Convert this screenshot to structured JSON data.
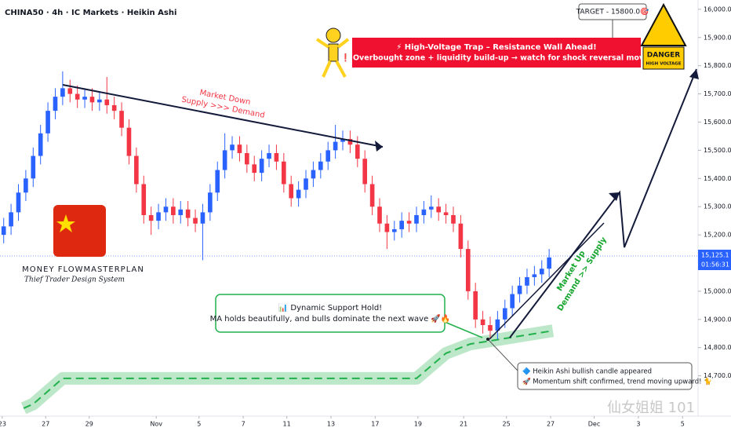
{
  "chart_data": {
    "type": "candlestick",
    "title": "CHINA50 · 4h · IC Markets · Heikin Ashi",
    "up_color": "#2962ff",
    "down_color": "#f23645",
    "x": [
      0,
      1,
      2,
      3,
      4,
      5,
      6,
      7,
      8,
      9,
      10,
      11,
      12,
      13,
      14,
      15,
      16,
      17,
      18,
      19,
      20,
      21,
      22,
      23,
      24,
      25,
      26,
      27,
      28,
      29,
      30,
      31,
      32,
      33,
      34,
      35,
      36,
      37,
      38,
      39,
      40,
      41,
      42,
      43,
      44,
      45,
      46,
      47,
      48,
      49,
      50,
      51,
      52,
      53,
      54,
      55,
      56,
      57,
      58,
      59,
      60,
      61,
      62,
      63,
      64,
      65,
      66,
      67,
      68,
      69,
      70,
      71,
      72,
      73,
      74
    ],
    "open": [
      15200,
      15230,
      15280,
      15350,
      15400,
      15480,
      15560,
      15640,
      15690,
      15720,
      15700,
      15680,
      15690,
      15670,
      15680,
      15660,
      15640,
      15580,
      15480,
      15380,
      15270,
      15250,
      15280,
      15300,
      15270,
      15290,
      15260,
      15240,
      15280,
      15350,
      15430,
      15500,
      15520,
      15490,
      15450,
      15420,
      15470,
      15490,
      15460,
      15380,
      15330,
      15360,
      15400,
      15430,
      15460,
      15500,
      15530,
      15540,
      15520,
      15470,
      15380,
      15300,
      15240,
      15210,
      15220,
      15250,
      15240,
      15270,
      15290,
      15300,
      15280,
      15270,
      15240,
      15150,
      15000,
      14900,
      14880,
      14860,
      14900,
      14940,
      14990,
      15020,
      15050,
      15060,
      15080
    ],
    "high": [
      15260,
      15310,
      15380,
      15430,
      15510,
      15590,
      15670,
      15720,
      15780,
      15750,
      15730,
      15720,
      15720,
      15710,
      15760,
      15690,
      15670,
      15610,
      15510,
      15410,
      15300,
      15310,
      15330,
      15330,
      15320,
      15320,
      15290,
      15310,
      15380,
      15460,
      15560,
      15550,
      15550,
      15520,
      15480,
      15500,
      15520,
      15520,
      15490,
      15410,
      15390,
      15430,
      15460,
      15490,
      15530,
      15590,
      15570,
      15570,
      15550,
      15500,
      15410,
      15330,
      15270,
      15250,
      15280,
      15280,
      15300,
      15320,
      15340,
      15330,
      15310,
      15300,
      15270,
      15180,
      15030,
      14930,
      14910,
      14930,
      14970,
      15020,
      15050,
      15080,
      15090,
      15110,
      15150
    ],
    "low": [
      15170,
      15200,
      15250,
      15320,
      15370,
      15450,
      15530,
      15610,
      15660,
      15670,
      15650,
      15650,
      15640,
      15640,
      15630,
      15610,
      15550,
      15450,
      15350,
      15240,
      15200,
      15220,
      15250,
      15240,
      15240,
      15230,
      15210,
      15110,
      15250,
      15320,
      15400,
      15470,
      15460,
      15420,
      15390,
      15390,
      15440,
      15430,
      15350,
      15300,
      15300,
      15330,
      15370,
      15400,
      15430,
      15470,
      15500,
      15490,
      15440,
      15350,
      15270,
      15210,
      15150,
      15180,
      15190,
      15210,
      15210,
      15240,
      15260,
      15250,
      15240,
      15210,
      15120,
      14970,
      14870,
      14850,
      14830,
      14830,
      14870,
      14910,
      14960,
      14990,
      15020,
      15030,
      15050
    ],
    "close": [
      15230,
      15280,
      15350,
      15400,
      15480,
      15560,
      15640,
      15690,
      15720,
      15700,
      15680,
      15690,
      15670,
      15680,
      15660,
      15640,
      15580,
      15480,
      15380,
      15270,
      15250,
      15280,
      15300,
      15270,
      15290,
      15260,
      15240,
      15280,
      15350,
      15430,
      15500,
      15520,
      15490,
      15450,
      15420,
      15470,
      15490,
      15460,
      15380,
      15330,
      15360,
      15400,
      15430,
      15460,
      15500,
      15530,
      15540,
      15520,
      15470,
      15380,
      15300,
      15240,
      15210,
      15220,
      15250,
      15240,
      15270,
      15290,
      15300,
      15280,
      15270,
      15240,
      15150,
      15000,
      14900,
      14880,
      14860,
      14900,
      14940,
      14990,
      15020,
      15050,
      15060,
      15080,
      15120
    ],
    "ma": {
      "color": "#22b14c",
      "x": [
        2.7,
        4,
        8,
        56,
        60,
        63.3,
        65.5,
        74.5
      ],
      "values": [
        14585,
        14600,
        14691,
        14691,
        14780,
        14813,
        14822,
        14860
      ]
    },
    "last_price": {
      "value": 15125.1,
      "label": "15,125.1"
    },
    "countdown": "01:56:31",
    "xlim": [
      -0.5,
      94.2
    ],
    "xticks": [
      {
        "value": -0.2,
        "label": "23"
      },
      {
        "value": 5.7,
        "label": "27"
      },
      {
        "value": 11.6,
        "label": "29"
      },
      {
        "value": 20.7,
        "label": "Nov"
      },
      {
        "value": 26.5,
        "label": "5"
      },
      {
        "value": 32.5,
        "label": "7"
      },
      {
        "value": 38.4,
        "label": "11"
      },
      {
        "value": 44.4,
        "label": "13"
      },
      {
        "value": 50.4,
        "label": "17"
      },
      {
        "value": 56.2,
        "label": "19"
      },
      {
        "value": 62.4,
        "label": "21"
      },
      {
        "value": 68.2,
        "label": "25"
      },
      {
        "value": 74.2,
        "label": "27"
      },
      {
        "value": 80.1,
        "label": "Dec"
      },
      {
        "value": 86.1,
        "label": "3"
      },
      {
        "value": 92.1,
        "label": "5"
      }
    ],
    "ylim": [
      14557,
      16033
    ],
    "yticks": [
      {
        "value": 14700,
        "label": "14,700.0"
      },
      {
        "value": 14800,
        "label": "14,800.0"
      },
      {
        "value": 14900,
        "label": "14,900.0"
      },
      {
        "value": 15000,
        "label": "15,000.0"
      },
      {
        "value": 15100,
        "label": "15,100.0"
      },
      {
        "value": 15200,
        "label": "15,200.0"
      },
      {
        "value": 15300,
        "label": "15,300.0"
      },
      {
        "value": 15400,
        "label": "15,400.0"
      },
      {
        "value": 15500,
        "label": "15,500.0"
      },
      {
        "value": 15600,
        "label": "15,600.0"
      },
      {
        "value": 15700,
        "label": "15,700.0"
      },
      {
        "value": 15800,
        "label": "15,800.0"
      },
      {
        "value": 15900,
        "label": "15,900.0"
      },
      {
        "value": 16000,
        "label": "16,000.0"
      }
    ],
    "grid": false,
    "annotations": {
      "target": "TARGET - 15800.0🎯",
      "trap_title": "⚡ High-Voltage Trap – Resistance Wall Ahead!",
      "trap_text": "❗ Overbought zone + liquidity build-up → watch for shock reversal move.",
      "danger": "DANGER",
      "high_voltage": "HIGH VOLTAGE",
      "down_1": "Market Down",
      "down_2": "Supply >>> Demand",
      "up_1": "Market Up",
      "up_2": "Demand >> Supply",
      "brand_1": "MONEY FLOWMASTERPLAN",
      "brand_2": "Thief Trader Design System",
      "support_1": "📊 Dynamic Support Hold!",
      "support_2": "MA holds beautifully, and bulls dominate the next wave 🚀🔥",
      "ha_1": "🔷 Heikin Ashi bullish candle appeared",
      "ha_2": "🚀 Momentum shift confirmed, trend moving upward! 🐈",
      "watermark": "仙女姐姐 101"
    }
  }
}
